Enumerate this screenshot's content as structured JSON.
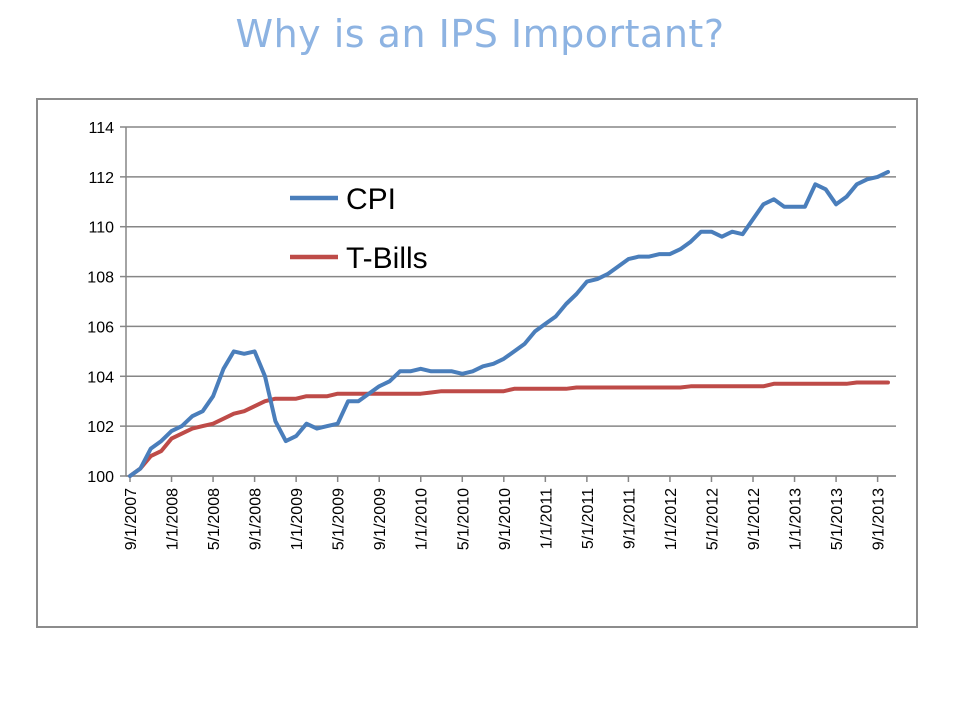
{
  "slide": {
    "title": "Why is an IPS Important?"
  },
  "colors": {
    "title": "#8db3e2",
    "cpi": "#4a7ebb",
    "tbills": "#be4b48",
    "grid": "#868686"
  },
  "chart_data": {
    "type": "line",
    "title": "",
    "xlabel": "",
    "ylabel": "",
    "ylim": [
      100,
      114
    ],
    "yticks": [
      100,
      102,
      104,
      106,
      108,
      110,
      112,
      114
    ],
    "xticks": [
      "9/1/2007",
      "1/1/2008",
      "5/1/2008",
      "9/1/2008",
      "1/1/2009",
      "5/1/2009",
      "9/1/2009",
      "1/1/2010",
      "5/1/2010",
      "9/1/2010",
      "1/1/2011",
      "5/1/2011",
      "9/1/2011",
      "1/1/2012",
      "5/1/2012",
      "9/1/2012",
      "1/1/2013",
      "5/1/2013",
      "9/1/2013"
    ],
    "grid": true,
    "legend_position": "upper-left-inside",
    "x_start": "9/1/2007",
    "x_step": "1 month",
    "series": [
      {
        "name": "CPI",
        "values": [
          100,
          100.3,
          101.1,
          101.4,
          101.8,
          102.0,
          102.4,
          102.6,
          103.2,
          104.3,
          105.0,
          104.9,
          105.0,
          104.0,
          102.2,
          101.4,
          101.6,
          102.1,
          101.9,
          102.0,
          102.1,
          103.0,
          103.0,
          103.3,
          103.6,
          103.8,
          104.2,
          104.2,
          104.3,
          104.2,
          104.2,
          104.2,
          104.1,
          104.2,
          104.4,
          104.5,
          104.7,
          105.0,
          105.3,
          105.8,
          106.1,
          106.4,
          106.9,
          107.3,
          107.8,
          107.9,
          108.1,
          108.4,
          108.7,
          108.8,
          108.8,
          108.9,
          108.9,
          109.1,
          109.4,
          109.8,
          109.8,
          109.6,
          109.8,
          109.7,
          110.3,
          110.9,
          111.1,
          110.8,
          110.8,
          110.8,
          111.7,
          111.5,
          110.9,
          111.2,
          111.7,
          111.9,
          112.0,
          112.2
        ],
        "color": "#4a7ebb"
      },
      {
        "name": "T-Bills",
        "values": [
          100,
          100.3,
          100.8,
          101.0,
          101.5,
          101.7,
          101.9,
          102.0,
          102.1,
          102.3,
          102.5,
          102.6,
          102.8,
          103.0,
          103.1,
          103.1,
          103.1,
          103.2,
          103.2,
          103.2,
          103.3,
          103.3,
          103.3,
          103.3,
          103.3,
          103.3,
          103.3,
          103.3,
          103.3,
          103.35,
          103.4,
          103.4,
          103.4,
          103.4,
          103.4,
          103.4,
          103.4,
          103.5,
          103.5,
          103.5,
          103.5,
          103.5,
          103.5,
          103.55,
          103.55,
          103.55,
          103.55,
          103.55,
          103.55,
          103.55,
          103.55,
          103.55,
          103.55,
          103.55,
          103.6,
          103.6,
          103.6,
          103.6,
          103.6,
          103.6,
          103.6,
          103.6,
          103.7,
          103.7,
          103.7,
          103.7,
          103.7,
          103.7,
          103.7,
          103.7,
          103.75,
          103.75,
          103.75,
          103.75
        ],
        "color": "#be4b48"
      }
    ]
  }
}
